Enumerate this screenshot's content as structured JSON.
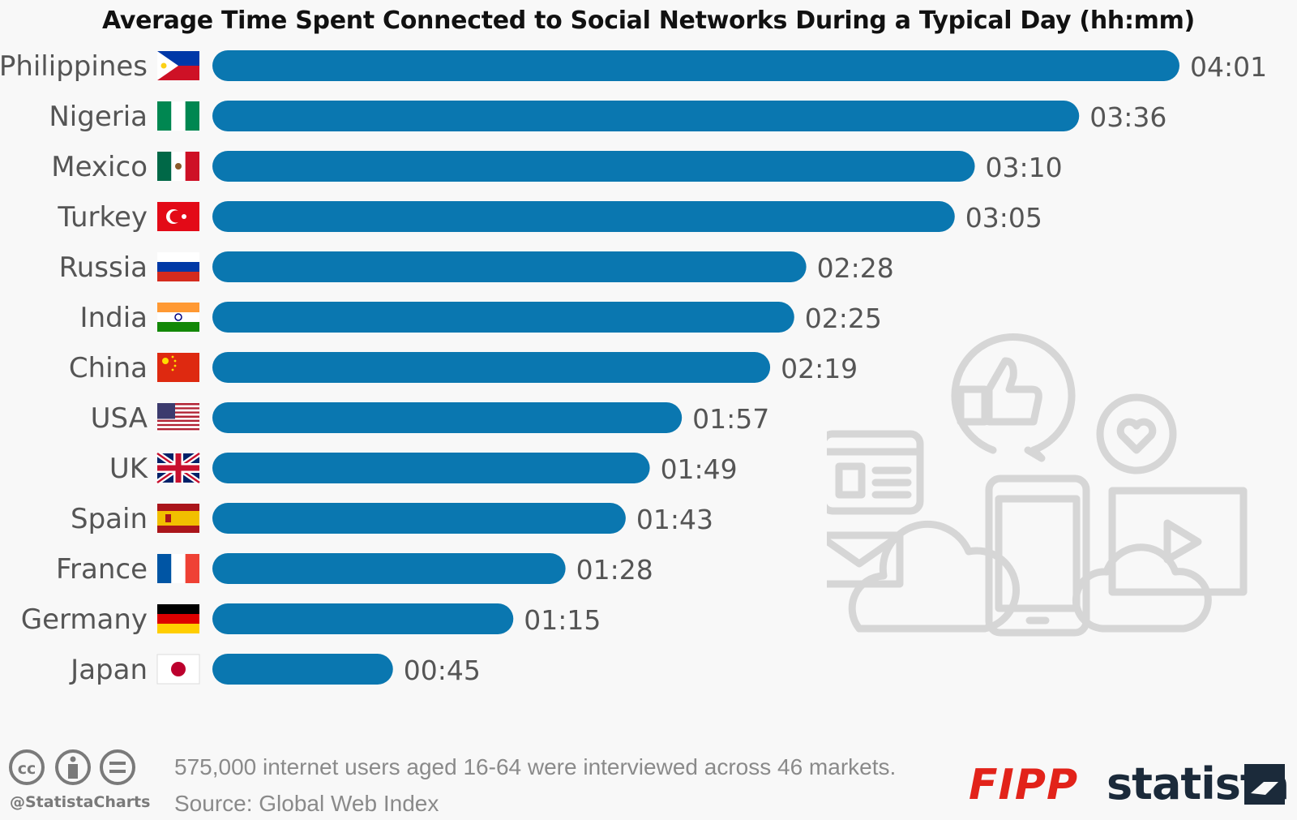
{
  "chart_data": {
    "type": "bar",
    "orientation": "horizontal",
    "title": "Average Time Spent Connected to Social Networks During a Typical Day (hh:mm)",
    "categories": [
      "Philippines",
      "Nigeria",
      "Mexico",
      "Turkey",
      "Russia",
      "India",
      "China",
      "USA",
      "UK",
      "Spain",
      "France",
      "Germany",
      "Japan"
    ],
    "values_minutes": [
      241,
      216,
      190,
      185,
      148,
      145,
      139,
      117,
      109,
      103,
      88,
      75,
      45
    ],
    "labels": [
      "04:01",
      "03:36",
      "03:10",
      "03:05",
      "02:28",
      "02:25",
      "02:19",
      "01:57",
      "01:49",
      "01:43",
      "01:28",
      "01:15",
      "00:45"
    ],
    "flags": [
      "philippines-flag",
      "nigeria-flag",
      "mexico-flag",
      "turkey-flag",
      "russia-flag",
      "india-flag",
      "china-flag",
      "usa-flag",
      "uk-flag",
      "spain-flag",
      "france-flag",
      "germany-flag",
      "japan-flag"
    ],
    "bar_color": "#0a77b0"
  },
  "footer": {
    "note": "575,000 internet users aged 16-64 were interviewed across 46 markets.",
    "source": "Source: Global Web Index",
    "handle": "@StatistaCharts",
    "brand_fipp": "FIPP",
    "brand_statista": "statista"
  },
  "icons": [
    "cc-icon",
    "attribution-icon",
    "noderivs-icon",
    "thumbs-up-icon",
    "heart-icon",
    "browser-icon",
    "mail-icon",
    "cloud-icon",
    "tablet-icon",
    "video-icon"
  ]
}
